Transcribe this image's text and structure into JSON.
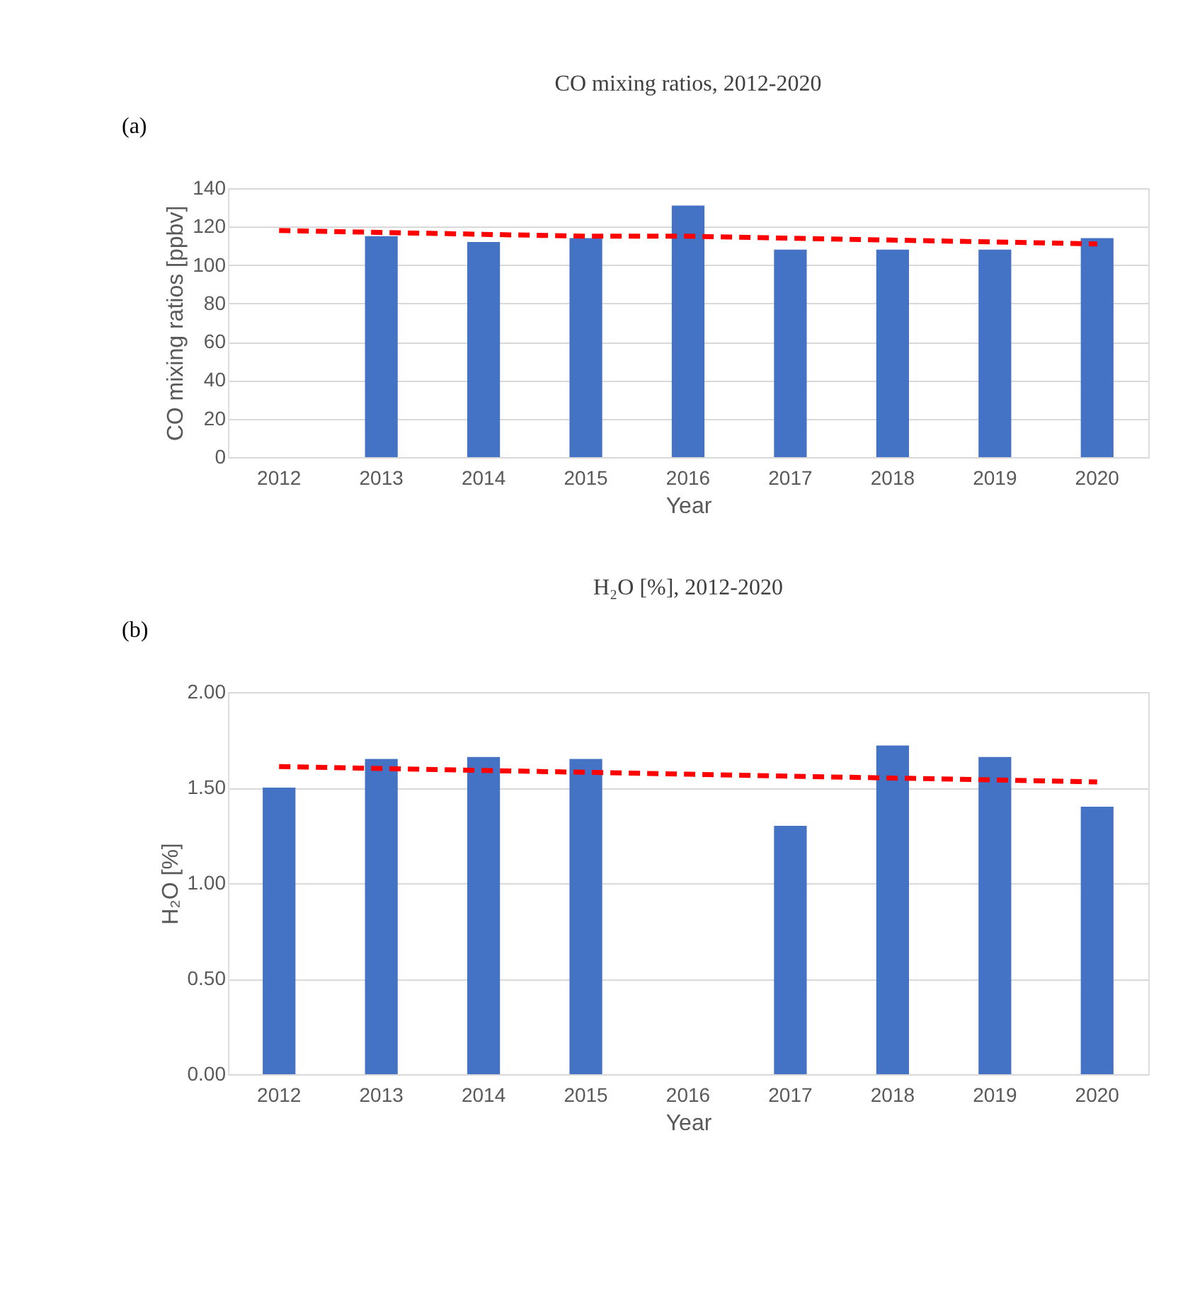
{
  "chart_data": [
    {
      "type": "bar",
      "title": "CO mixing ratios, 2012-2020",
      "xlabel": "Year",
      "ylabel": "CO mixing ratios [ppbv]",
      "annotations": [
        "(a)"
      ],
      "categories": [
        "2012",
        "2013",
        "2014",
        "2015",
        "2016",
        "2017",
        "2018",
        "2019",
        "2020"
      ],
      "series": [
        {
          "type": "bar",
          "color": "#4472c4",
          "values": [
            null,
            115,
            112,
            114,
            131,
            108,
            108,
            108,
            114
          ]
        },
        {
          "type": "line",
          "color": "#ff0000",
          "line_style": "dashed",
          "values": [
            118,
            117,
            116,
            115,
            115,
            114,
            113,
            112,
            111
          ]
        }
      ],
      "ylim": [
        0,
        140
      ],
      "yticks": [
        0,
        20,
        40,
        60,
        80,
        100,
        120,
        140
      ],
      "grid": "y",
      "legend": false
    },
    {
      "type": "bar",
      "title": "H₂O [%], 2012-2020",
      "xlabel": "Year",
      "ylabel": "H₂O [%]",
      "annotations": [
        "(b)"
      ],
      "categories": [
        "2012",
        "2013",
        "2014",
        "2015",
        "2016",
        "2017",
        "2018",
        "2019",
        "2020"
      ],
      "series": [
        {
          "type": "bar",
          "color": "#4472c4",
          "values": [
            1.5,
            1.65,
            1.66,
            1.65,
            null,
            1.3,
            1.72,
            1.66,
            1.4
          ]
        },
        {
          "type": "line",
          "color": "#ff0000",
          "line_style": "dashed",
          "values": [
            1.61,
            1.6,
            1.59,
            1.58,
            1.57,
            1.56,
            1.55,
            1.54,
            1.53
          ]
        }
      ],
      "ylim": [
        0,
        2
      ],
      "yticks": [
        {
          "value": 0,
          "label": "0.00"
        },
        {
          "value": 0.5,
          "label": "0.50"
        },
        {
          "value": 1,
          "label": "1.00"
        },
        {
          "value": 1.5,
          "label": "1.50"
        },
        {
          "value": 2,
          "label": "2.00"
        }
      ],
      "grid": "y",
      "legend": false
    }
  ]
}
